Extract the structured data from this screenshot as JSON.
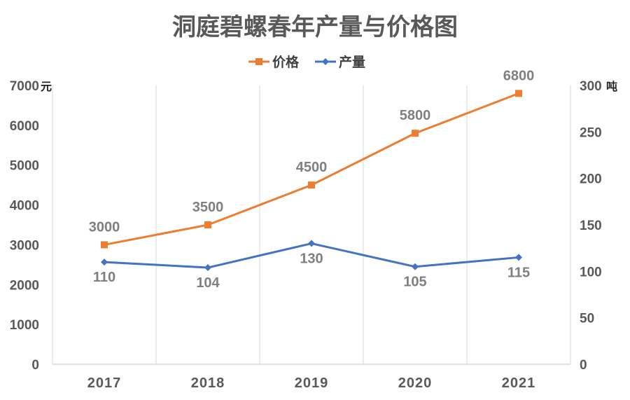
{
  "chart_data": {
    "type": "line",
    "title": "洞庭碧螺春年产量与价格图",
    "categories": [
      "2017",
      "2018",
      "2019",
      "2020",
      "2021"
    ],
    "series": [
      {
        "name": "价格",
        "axis": "left",
        "values": [
          3000,
          3500,
          4500,
          5800,
          6800
        ],
        "color": "#ED7D31",
        "marker": "square"
      },
      {
        "name": "产量",
        "axis": "right",
        "values": [
          110,
          104,
          130,
          105,
          115
        ],
        "color": "#4472C4",
        "marker": "diamond"
      }
    ],
    "y_left": {
      "unit": "元",
      "ylim": [
        0,
        7000
      ],
      "ticks": [
        0,
        1000,
        2000,
        3000,
        4000,
        5000,
        6000,
        7000
      ]
    },
    "y_right": {
      "unit": "吨",
      "ylim": [
        0,
        300
      ],
      "ticks": [
        0,
        50,
        100,
        150,
        200,
        250,
        300
      ]
    },
    "grid": "vertical",
    "legend": "top"
  }
}
